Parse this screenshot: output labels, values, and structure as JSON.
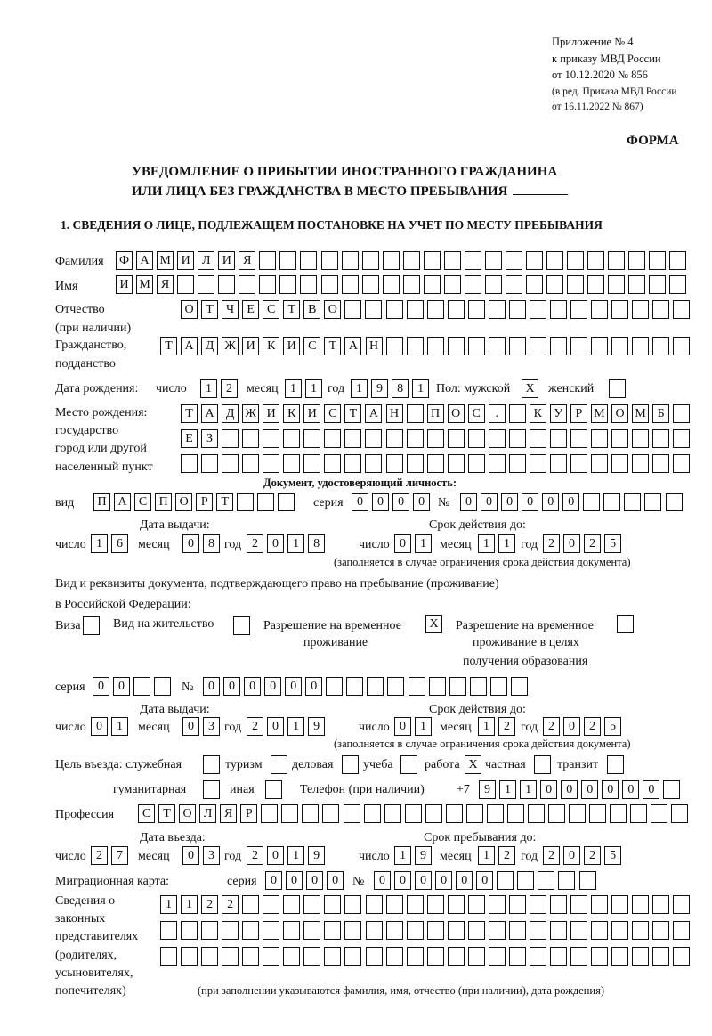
{
  "header": {
    "appendix": "Приложение № 4",
    "order": "к приказу МВД России",
    "order_date": "от 10.12.2020 № 856",
    "edition1": "(в ред. Приказа МВД России",
    "edition2": "от 16.11.2022 № 867)",
    "form": "ФОРМА",
    "title1": "УВЕДОМЛЕНИЕ О ПРИБЫТИИ ИНОСТРАННОГО ГРАЖДАНИНА",
    "title2": "ИЛИ ЛИЦА БЕЗ ГРАЖДАНСТВА В МЕСТО ПРЕБЫВАНИЯ",
    "section1": "1. СВЕДЕНИЯ О ЛИЦЕ, ПОДЛЕЖАЩЕМ ПОСТАНОВКЕ НА УЧЕТ ПО МЕСТУ ПРЕБЫВАНИЯ"
  },
  "labels": {
    "surname": "Фамилия",
    "name": "Имя",
    "patronymic1": "Отчество",
    "patronymic2": "(при наличии)",
    "citizenship1": "Гражданство,",
    "citizenship2": "подданство",
    "dob": "Дата рождения:",
    "day": "число",
    "month": "месяц",
    "year": "год",
    "sex_male": "Пол: мужской",
    "sex_female": "женский",
    "pob1": "Место рождения:",
    "pob2": "государство",
    "pob3": "город или другой",
    "pob4": "населенный пункт",
    "id_doc": "Документ, удостоверяющий личность:",
    "kind": "вид",
    "series": "серия",
    "number": "№",
    "issue_date": "Дата выдачи:",
    "valid_until": "Срок действия до:",
    "valid_note": "(заполняется в случае ограничения срока действия документа)",
    "right_doc1": "Вид и реквизиты документа, подтверждающего право на пребывание (проживание)",
    "right_doc2": "в Российской Федерации:",
    "visa": "Виза",
    "residence": "Вид на жительство",
    "trp1": "Разрешение на временное",
    "trp2": "проживание",
    "trpe1": "Разрешение на временное",
    "trpe2": "проживание в целях",
    "trpe3": "получения образования",
    "purpose": "Цель въезда: служебная",
    "tourism": "туризм",
    "business": "деловая",
    "study": "учеба",
    "work": "работа",
    "private": "частная",
    "transit": "транзит",
    "humanitarian": "гуманитарная",
    "other": "иная",
    "phone": "Телефон (при наличии)",
    "phone_prefix": "+7",
    "profession": "Профессия",
    "entry_date": "Дата въезда:",
    "stay_until": "Срок пребывания до:",
    "migration_card": "Миграционная карта:",
    "reps1": "Сведения о",
    "reps2": "законных",
    "reps3": "представителях",
    "reps4": "(родителях,",
    "reps5": "усыновителях,",
    "reps6": "попечителях)",
    "reps_note": "(при заполнении указываются фамилия, имя, отчество (при наличии), дата рождения)"
  },
  "values": {
    "surname": [
      "Ф",
      "А",
      "М",
      "И",
      "Л",
      "И",
      "Я"
    ],
    "name": [
      "И",
      "М",
      "Я"
    ],
    "patronymic": [
      "О",
      "Т",
      "Ч",
      "Е",
      "С",
      "Т",
      "В",
      "О"
    ],
    "citizenship": [
      "Т",
      "А",
      "Д",
      "Ж",
      "И",
      "К",
      "И",
      "С",
      "Т",
      "А",
      "Н"
    ],
    "dob_day": [
      "1",
      "2"
    ],
    "dob_month": [
      "1",
      "1"
    ],
    "dob_year": [
      "1",
      "9",
      "8",
      "1"
    ],
    "sex_male": "X",
    "sex_female": "",
    "pob_row1": [
      "Т",
      "А",
      "Д",
      "Ж",
      "И",
      "К",
      "И",
      "С",
      "Т",
      "А",
      "Н",
      "",
      "П",
      "О",
      "С",
      ".",
      "",
      "К",
      "У",
      "Р",
      "М",
      "О",
      "М",
      "Б"
    ],
    "pob_row2": [
      "Е",
      "З"
    ],
    "pob_row3": [],
    "id_kind": [
      "П",
      "А",
      "С",
      "П",
      "О",
      "Р",
      "Т"
    ],
    "id_series": [
      "0",
      "0",
      "0",
      "0"
    ],
    "id_number": [
      "0",
      "0",
      "0",
      "0",
      "0",
      "0"
    ],
    "id_issue_day": [
      "1",
      "6"
    ],
    "id_issue_month": [
      "0",
      "8"
    ],
    "id_issue_year": [
      "2",
      "0",
      "1",
      "8"
    ],
    "id_valid_day": [
      "0",
      "1"
    ],
    "id_valid_month": [
      "1",
      "1"
    ],
    "id_valid_year": [
      "2",
      "0",
      "2",
      "5"
    ],
    "visa": "",
    "residence": "",
    "trp": "X",
    "trpe": "",
    "rd_series": [
      "0",
      "0"
    ],
    "rd_number": [
      "0",
      "0",
      "0",
      "0",
      "0",
      "0"
    ],
    "rd_issue_day": [
      "0",
      "1"
    ],
    "rd_issue_month": [
      "0",
      "3"
    ],
    "rd_issue_year": [
      "2",
      "0",
      "1",
      "9"
    ],
    "rd_valid_day": [
      "0",
      "1"
    ],
    "rd_valid_month": [
      "1",
      "2"
    ],
    "rd_valid_year": [
      "2",
      "0",
      "2",
      "5"
    ],
    "p_official": "",
    "p_tourism": "",
    "p_business": "",
    "p_study": "",
    "p_work": "X",
    "p_private": "",
    "p_transit": "",
    "p_humanitarian": "",
    "p_other": "",
    "phone": [
      "9",
      "1",
      "1",
      "0",
      "0",
      "0",
      "0",
      "0",
      "0"
    ],
    "profession": [
      "С",
      "Т",
      "О",
      "Л",
      "Я",
      "Р"
    ],
    "entry_day": [
      "2",
      "7"
    ],
    "entry_month": [
      "0",
      "3"
    ],
    "entry_year": [
      "2",
      "0",
      "1",
      "9"
    ],
    "stay_day": [
      "1",
      "9"
    ],
    "stay_month": [
      "1",
      "2"
    ],
    "stay_year": [
      "2",
      "0",
      "2",
      "5"
    ],
    "mc_series": [
      "0",
      "0",
      "0",
      "0"
    ],
    "mc_number": [
      "0",
      "0",
      "0",
      "0",
      "0",
      "0"
    ],
    "reps_row1": [
      "1",
      "1",
      "2",
      "2"
    ],
    "reps_row2": [],
    "reps_row3": []
  }
}
